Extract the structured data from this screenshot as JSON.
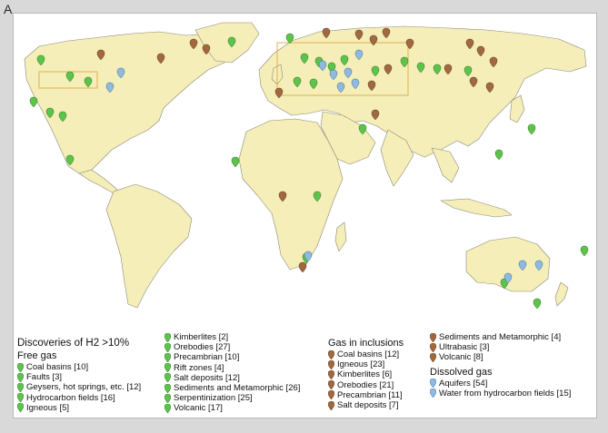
{
  "panel_label": "A",
  "colors": {
    "free_gas": "#5cc44a",
    "inclusions": "#a0693f",
    "dissolved": "#8fbadf",
    "land": "#f5eeb8",
    "border": "#888888",
    "highlight_box": "#e0b050"
  },
  "legend": {
    "title": "Discoveries of H2 >10%",
    "free_gas": {
      "heading": "Free gas",
      "items": [
        "Coal basins [10]",
        "Faults [3]",
        "Geysers, hot springs, etc. [12]",
        "Hydrocarbon fields [16]",
        "Igneous [5]",
        "Kimberlites [2]",
        "Orebodies [27]",
        "Precambrian [10]",
        "Rift zones [4]",
        "Salt deposits [12]",
        "Sediments and Metamorphic [26]",
        "Serpentinization [25]",
        "Volcanic [17]"
      ]
    },
    "inclusions": {
      "heading": "Gas in inclusions",
      "items": [
        "Coal basins [12]",
        "Igneous [23]",
        "Kimberlites [6]",
        "Orebodies [21]",
        "Precambrian [11]",
        "Salt deposits [7]",
        "Sediments and Metamorphic [4]",
        "Ultrabasic [3]",
        "Volcanic [8]"
      ]
    },
    "dissolved": {
      "heading": "Dissolved gas",
      "items": [
        "Aquifers [54]",
        "Water from hydrocarbon fields [15]"
      ]
    }
  }
}
